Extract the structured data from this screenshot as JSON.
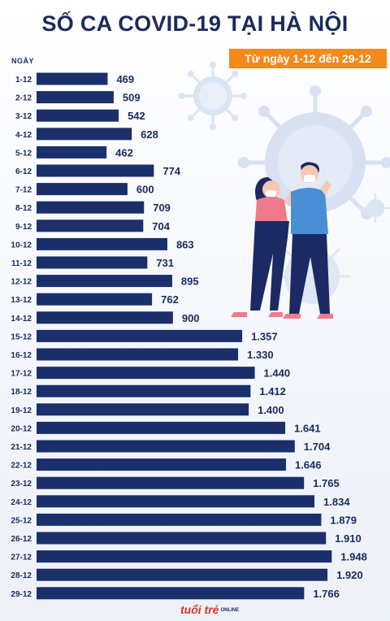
{
  "title": "SỐ CA COVID-19 TẠI HÀ NỘI",
  "date_range": "Từ ngày 1-12 đến 29-12",
  "logo": "tuổi trẻ",
  "logo_sub": "ONLINE",
  "colors": {
    "bar": "#1b2f6b",
    "title": "#1a2a5c",
    "badge": "#f28a1e",
    "virus": "#d7e1f2",
    "person_pink": "#ef7a8c",
    "person_blue": "#4a8fd6",
    "pants_navy": "#1c2a63"
  },
  "illustration": "couple-wearing-masks-with-virus",
  "chart_data": {
    "type": "bar",
    "orientation": "horizontal",
    "title": "SỐ CA COVID-19 TẠI HÀ NỘI",
    "xlabel": "",
    "ylabel": "NGÀY",
    "xlim": [
      0,
      2000
    ],
    "grid": false,
    "legend": "none",
    "categories": [
      "1-12",
      "2-12",
      "3-12",
      "4-12",
      "5-12",
      "6-12",
      "7-12",
      "8-12",
      "9-12",
      "10-12",
      "11-12",
      "12-12",
      "13-12",
      "14-12",
      "15-12",
      "16-12",
      "17-12",
      "18-12",
      "19-12",
      "20-12",
      "21-12",
      "22-12",
      "23-12",
      "24-12",
      "25-12",
      "26-12",
      "27-12",
      "28-12",
      "29-12"
    ],
    "values": [
      469,
      509,
      542,
      628,
      462,
      774,
      600,
      709,
      704,
      863,
      731,
      895,
      762,
      900,
      1357,
      1330,
      1440,
      1412,
      1400,
      1641,
      1704,
      1646,
      1765,
      1834,
      1879,
      1910,
      1948,
      1920,
      1766
    ],
    "value_labels": [
      "469",
      "509",
      "542",
      "628",
      "462",
      "774",
      "600",
      "709",
      "704",
      "863",
      "731",
      "895",
      "762",
      "900",
      "1.357",
      "1.330",
      "1.440",
      "1.412",
      "1.400",
      "1.641",
      "1.704",
      "1.646",
      "1.765",
      "1.834",
      "1.879",
      "1.910",
      "1.948",
      "1.920",
      "1.766"
    ]
  }
}
